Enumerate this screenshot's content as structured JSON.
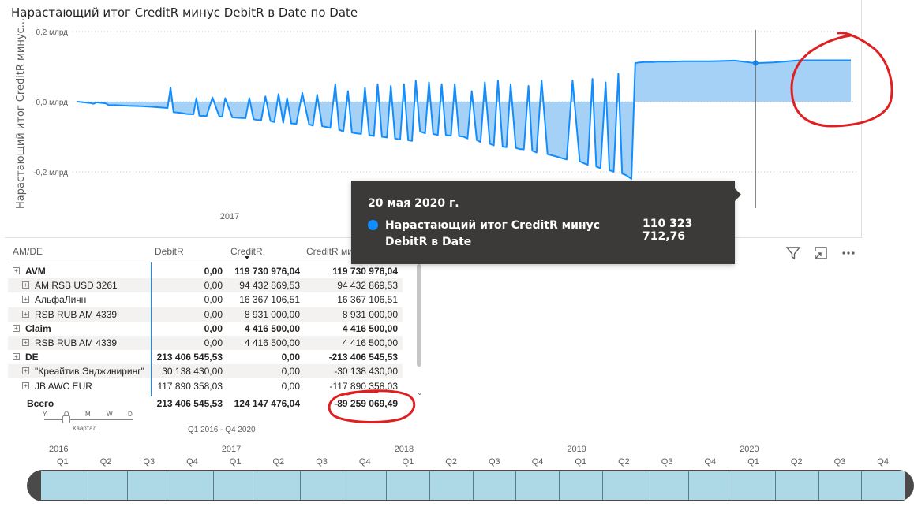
{
  "chart": {
    "title": "Нарастающий итог CreditR минус DebitR в Date по Date",
    "ylabel": "Нарастающий итог CreditR минус...",
    "y_ticks": [
      "0,2 млрд",
      "0,0 млрд",
      "-0,2 млрд"
    ],
    "x_tick": "2017"
  },
  "chart_data": {
    "type": "area",
    "title": "Нарастающий итог CreditR минус DebitR в Date по Date",
    "xlabel": "",
    "ylabel": "Нарастающий итог CreditR минус...",
    "ylim": [
      -0.2,
      0.2
    ],
    "y_unit": "млрд",
    "x_start": "2016-01-01",
    "x_end": "2020-12-31",
    "series": [
      {
        "x": [
          "2016-01-01",
          "2016-02-01",
          "2016-02-08",
          "2016-02-15",
          "2016-03-01",
          "2016-03-08",
          "2016-03-15",
          "2016-04-01",
          "2016-05-01",
          "2016-06-01",
          "2016-07-01",
          "2016-08-01",
          "2016-08-08",
          "2016-08-15",
          "2016-09-01",
          "2016-09-15",
          "2016-10-01",
          "2016-10-08",
          "2016-10-15",
          "2016-11-01",
          "2016-11-15",
          "2016-12-01",
          "2016-12-08",
          "2016-12-15",
          "2017-01-01",
          "2017-01-15",
          "2017-02-01",
          "2017-02-10",
          "2017-02-20",
          "2017-03-01",
          "2017-03-10",
          "2017-03-20",
          "2017-04-01",
          "2017-04-10",
          "2017-04-20",
          "2017-05-01",
          "2017-05-10",
          "2017-05-20",
          "2017-06-01",
          "2017-06-15",
          "2017-07-01",
          "2017-07-10",
          "2017-07-20",
          "2017-08-01",
          "2017-08-10",
          "2017-08-20",
          "2017-09-01",
          "2017-09-10",
          "2017-09-20",
          "2017-10-01",
          "2017-10-10",
          "2017-10-20",
          "2017-11-01",
          "2017-11-10",
          "2017-11-20",
          "2017-12-01",
          "2017-12-10",
          "2017-12-20",
          "2018-01-01",
          "2018-01-10",
          "2018-01-20",
          "2018-02-01",
          "2018-02-10",
          "2018-02-20",
          "2018-03-01",
          "2018-03-10",
          "2018-03-20",
          "2018-04-01",
          "2018-04-10",
          "2018-04-20",
          "2018-05-01",
          "2018-05-10",
          "2018-05-20",
          "2018-06-01",
          "2018-06-10",
          "2018-06-20",
          "2018-07-01",
          "2018-07-10",
          "2018-07-20",
          "2018-08-01",
          "2018-08-10",
          "2018-08-20",
          "2018-09-01",
          "2018-09-10",
          "2018-09-20",
          "2018-10-01",
          "2018-10-10",
          "2018-10-20",
          "2018-11-01",
          "2018-11-10",
          "2018-11-20",
          "2018-12-01",
          "2018-12-10",
          "2018-12-20",
          "2019-01-01",
          "2019-01-15",
          "2019-02-01",
          "2019-02-15",
          "2019-03-01",
          "2019-03-15",
          "2019-04-01",
          "2019-04-10",
          "2019-04-20",
          "2019-05-01",
          "2019-05-10",
          "2019-05-20",
          "2019-06-01",
          "2019-06-10",
          "2019-06-20",
          "2019-07-01",
          "2019-07-10",
          "2019-07-20",
          "2019-08-01",
          "2019-08-10",
          "2019-08-20",
          "2019-09-01",
          "2019-09-10",
          "2019-09-20",
          "2019-10-01",
          "2019-10-15",
          "2019-11-01",
          "2019-12-01",
          "2020-01-01",
          "2020-02-01",
          "2020-03-01",
          "2020-04-01",
          "2020-05-20",
          "2020-07-01",
          "2020-09-01",
          "2020-12-31"
        ],
        "y": [
          0.0,
          -0.004,
          -0.006,
          -0.002,
          -0.004,
          -0.005,
          -0.01,
          -0.01,
          -0.012,
          -0.013,
          -0.015,
          -0.018,
          0.04,
          -0.03,
          -0.032,
          -0.035,
          -0.036,
          0.01,
          -0.04,
          -0.041,
          0.012,
          -0.042,
          -0.043,
          0.01,
          -0.045,
          -0.046,
          -0.047,
          0.01,
          -0.05,
          -0.052,
          -0.053,
          0.015,
          -0.055,
          -0.058,
          0.022,
          -0.06,
          0.01,
          -0.062,
          -0.063,
          0.025,
          -0.065,
          -0.068,
          0.02,
          -0.07,
          -0.072,
          -0.075,
          0.05,
          -0.08,
          -0.085,
          0.03,
          -0.088,
          -0.09,
          -0.092,
          0.04,
          -0.095,
          -0.098,
          0.05,
          -0.1,
          -0.102,
          0.045,
          -0.105,
          -0.108,
          0.05,
          -0.11,
          -0.112,
          0.06,
          -0.085,
          -0.09,
          0.055,
          -0.092,
          -0.095,
          0.05,
          -0.095,
          -0.097,
          0.05,
          -0.098,
          -0.1,
          -0.105,
          0.03,
          -0.11,
          -0.115,
          0.055,
          -0.12,
          -0.125,
          0.06,
          -0.128,
          -0.13,
          0.05,
          -0.132,
          -0.135,
          -0.136,
          0.045,
          -0.14,
          -0.145,
          0.06,
          -0.15,
          -0.155,
          -0.16,
          -0.165,
          0.06,
          -0.17,
          -0.175,
          -0.18,
          0.065,
          -0.185,
          -0.19,
          0.055,
          -0.195,
          -0.2,
          0.08,
          -0.205,
          -0.21,
          -0.22,
          0.11,
          0.112,
          0.113,
          0.113,
          0.113,
          0.114,
          0.114,
          0.114,
          0.115,
          0.115,
          0.115,
          0.116,
          0.117,
          0.11,
          0.112,
          0.118,
          0.118
        ]
      }
    ],
    "grid": true,
    "crosshair_x": "2020-05-20"
  },
  "tooltip": {
    "date": "20 мая 2020 г.",
    "label": "Нарастающий итог CreditR минус DebitR в Date",
    "value": "110 323 712,76",
    "dot_color": "#118dff"
  },
  "matrix": {
    "headers": [
      "AM/DE",
      "DebitR",
      "CreditR",
      "CreditR минус DebitR"
    ],
    "rows": [
      {
        "label": "AVM",
        "debit": "0,00",
        "credit": "119 730 976,04",
        "diff": "119 730 976,04",
        "level": 0
      },
      {
        "label": "AM RSB USD 3261",
        "debit": "0,00",
        "credit": "94 432 869,53",
        "diff": "94 432 869,53",
        "level": 1
      },
      {
        "label": "АльфаЛичн",
        "debit": "0,00",
        "credit": "16 367 106,51",
        "diff": "16 367 106,51",
        "level": 1
      },
      {
        "label": "RSB RUB AM 4339",
        "debit": "0,00",
        "credit": "8 931 000,00",
        "diff": "8 931 000,00",
        "level": 1
      },
      {
        "label": "Claim",
        "debit": "0,00",
        "credit": "4 416 500,00",
        "diff": "4 416 500,00",
        "level": 0
      },
      {
        "label": "RSB RUB AM 4339",
        "debit": "0,00",
        "credit": "4 416 500,00",
        "diff": "4 416 500,00",
        "level": 1
      },
      {
        "label": "DE",
        "debit": "213 406 545,53",
        "credit": "0,00",
        "diff": "-213 406 545,53",
        "level": 0
      },
      {
        "label": "\"Креайтив Энджиниринг\"",
        "debit": "30 138 430,00",
        "credit": "0,00",
        "diff": "-30 138 430,00",
        "level": 1
      },
      {
        "label": "JB AWC EUR",
        "debit": "117 890 358,03",
        "credit": "0,00",
        "diff": "-117 890 358,03",
        "level": 1
      }
    ],
    "total": {
      "label": "Всего",
      "debit": "213 406 545,53",
      "credit": "124 147 476,04",
      "diff": "-89 259 069,49"
    }
  },
  "slicer": {
    "levels": [
      "Y",
      "Q",
      "M",
      "W",
      "D"
    ],
    "level_caption": "Квартал",
    "range": "Q1 2016 - Q4 2020"
  },
  "timeline": {
    "years": [
      "2016",
      "2017",
      "2018",
      "2019",
      "2020"
    ],
    "quarters": [
      "Q1",
      "Q2",
      "Q3",
      "Q4",
      "Q1",
      "Q2",
      "Q3",
      "Q4",
      "Q1",
      "Q2",
      "Q3",
      "Q4",
      "Q1",
      "Q2",
      "Q3",
      "Q4",
      "Q1",
      "Q2",
      "Q3",
      "Q4"
    ],
    "cell_color": "#add8e6"
  },
  "colors": {
    "line": "#118dff",
    "area": "#a6d1f7",
    "annotation": "#e02020"
  },
  "icons": [
    "filter-icon",
    "focus-mode-icon",
    "more-options-icon"
  ]
}
